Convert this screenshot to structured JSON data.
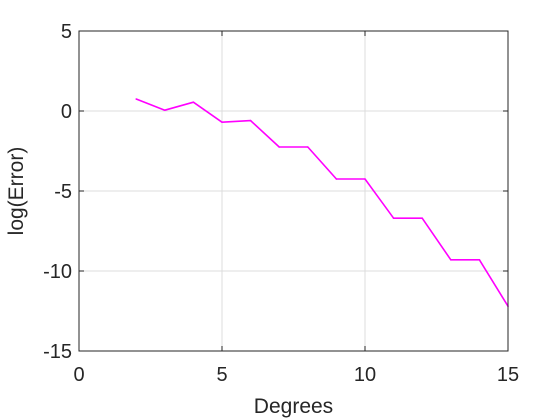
{
  "chart_data": {
    "type": "line",
    "title": "",
    "xlabel": "Degrees",
    "ylabel": "log(Error)",
    "xlim": [
      0,
      15
    ],
    "ylim": [
      -15,
      5
    ],
    "xticks": [
      "0",
      "5",
      "10",
      "15"
    ],
    "yticks": [
      "5",
      "0",
      "-5",
      "-10",
      "-15"
    ],
    "grid": true,
    "series": [
      {
        "color": "#ff00ff",
        "x": [
          2,
          3,
          4,
          5,
          6,
          7,
          8,
          9,
          10,
          11,
          12,
          13,
          14,
          15
        ],
        "y": [
          0.75,
          0.05,
          0.55,
          -0.7,
          -0.6,
          -2.25,
          -2.25,
          -4.25,
          -4.25,
          -6.7,
          -6.7,
          -9.3,
          -9.3,
          -12.2
        ]
      }
    ]
  }
}
